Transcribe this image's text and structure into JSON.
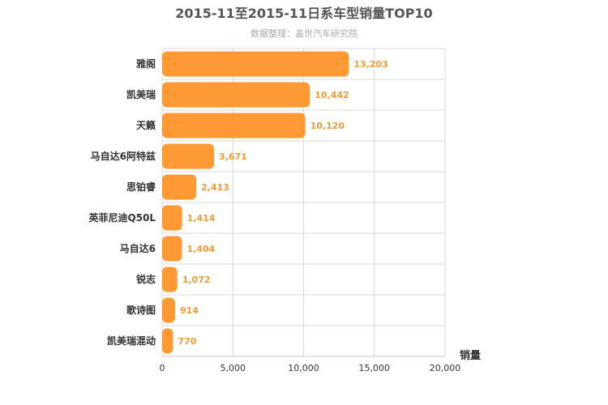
{
  "chart_data": {
    "type": "bar",
    "orientation": "horizontal",
    "title": "2015-11至2015-11日系车型销量TOP10",
    "subtitle": "数据整理：盖世汽车研究院",
    "xlabel": "销量",
    "ylabel": "",
    "categories": [
      "雅阁",
      "凯美瑞",
      "天籁",
      "马自达6阿特兹",
      "思铂睿",
      "英菲尼迪Q50L",
      "马自达6",
      "锐志",
      "歌诗图",
      "凯美瑞混动"
    ],
    "values": [
      13203,
      10442,
      10120,
      3671,
      2413,
      1414,
      1404,
      1072,
      914,
      770
    ],
    "value_labels": [
      "13,203",
      "10,442",
      "10,120",
      "3,671",
      "2,413",
      "1,414",
      "1,404",
      "1,072",
      "914",
      "770"
    ],
    "ticks": [
      0,
      5000,
      10000,
      15000,
      20000
    ],
    "tick_labels": [
      "0",
      "5,000",
      "10,000",
      "15,000",
      "20,000"
    ],
    "xlim": [
      0,
      20000
    ],
    "grid": true,
    "legend": "none",
    "colors": {
      "bar": "#ff9933",
      "data_label": "#f29a33",
      "grid": "#d8d8d8"
    }
  }
}
